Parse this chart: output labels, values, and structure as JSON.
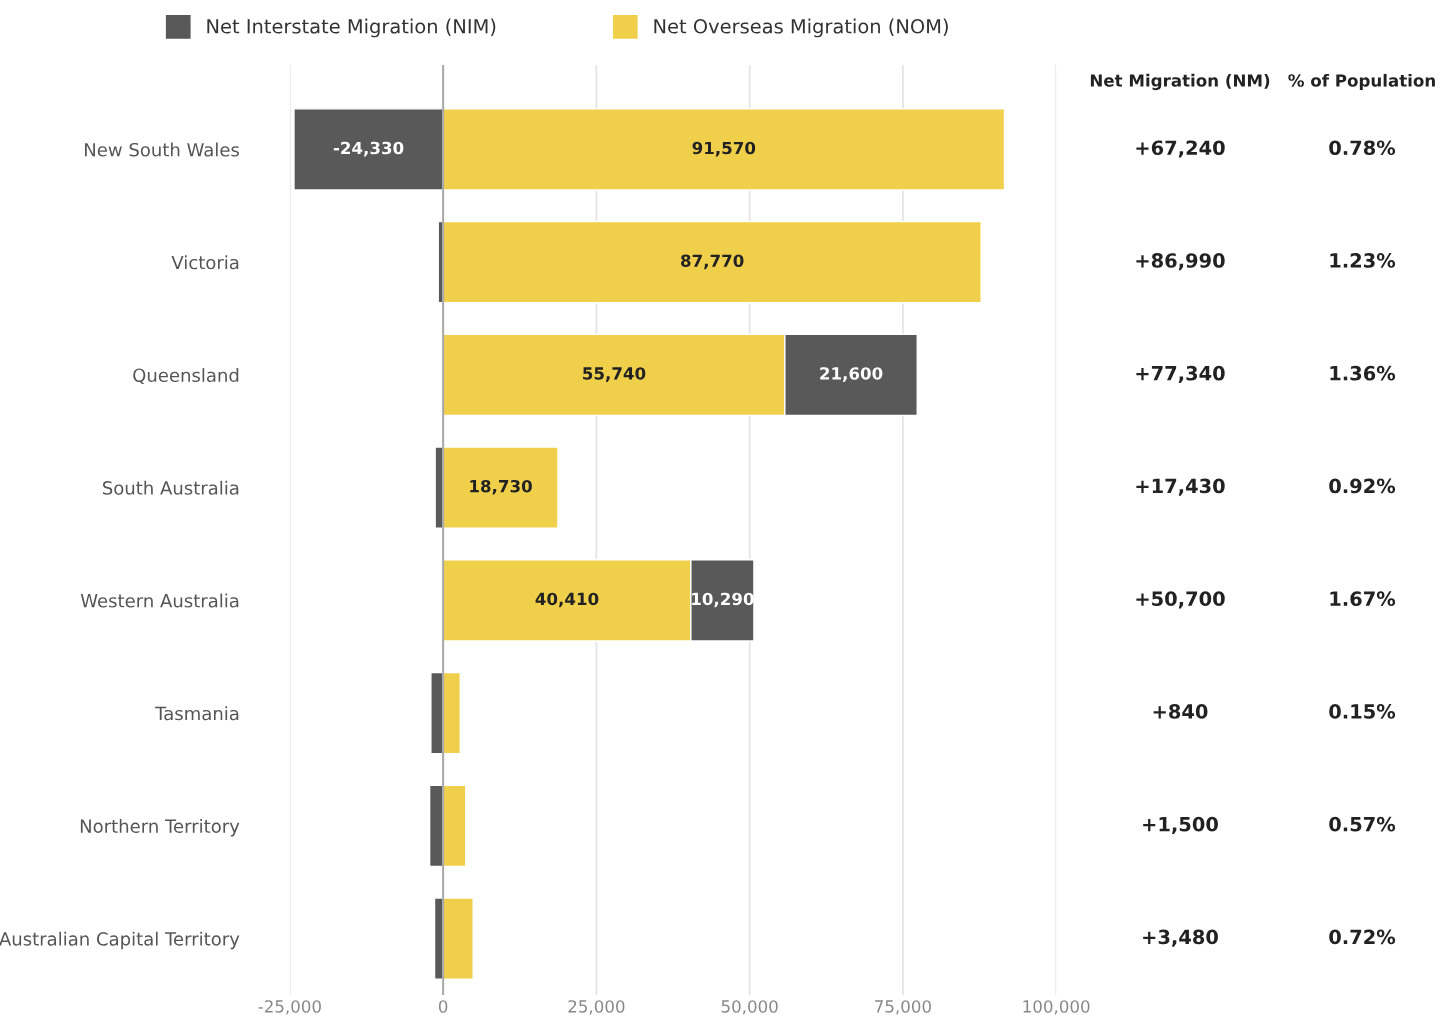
{
  "chart_data": {
    "type": "bar",
    "orientation": "horizontal",
    "stacked": true,
    "categories": [
      "New South Wales",
      "Victoria",
      "Queensland",
      "South Australia",
      "Western Australia",
      "Tasmania",
      "Northern Territory",
      "Australian Capital Territory"
    ],
    "series": [
      {
        "name": "Net Overseas Migration (NOM)",
        "color": "#f0d04a",
        "values": [
          91570,
          87770,
          55740,
          18730,
          40410,
          2800,
          3700,
          4900
        ],
        "value_labels": [
          "91,570",
          "87,770",
          "55,740",
          "18,730",
          "40,410",
          null,
          null,
          null
        ]
      },
      {
        "name": "Net Interstate Migration (NIM)",
        "color": "#595959",
        "values": [
          -24330,
          -800,
          21600,
          -1300,
          10290,
          -2000,
          -2200,
          -1400
        ],
        "value_labels": [
          "-24,330",
          null,
          "21,600",
          null,
          "10,290",
          null,
          null,
          null
        ]
      }
    ],
    "xlim": [
      -25000,
      100000
    ],
    "xticks": [
      {
        "value": -25000,
        "label": "-25,000"
      },
      0,
      {
        "value": 25000,
        "label": "25,000"
      },
      {
        "value": 50000,
        "label": "50,000"
      },
      {
        "value": 75000,
        "label": "75,000"
      },
      {
        "value": 100000,
        "label": "100,000"
      }
    ],
    "grid": "x",
    "legend": "top",
    "annotations": [
      "Net Migration (NM)",
      "% of Population",
      "+67,240",
      "0.78%",
      "+86,990",
      "1.23%",
      "+77,340",
      "1.36%",
      "+17,430",
      "0.92%",
      "+50,700",
      "1.67%",
      "+840",
      "0.15%",
      "+1,500",
      "0.57%",
      "+3,480",
      "0.72%"
    ]
  }
}
